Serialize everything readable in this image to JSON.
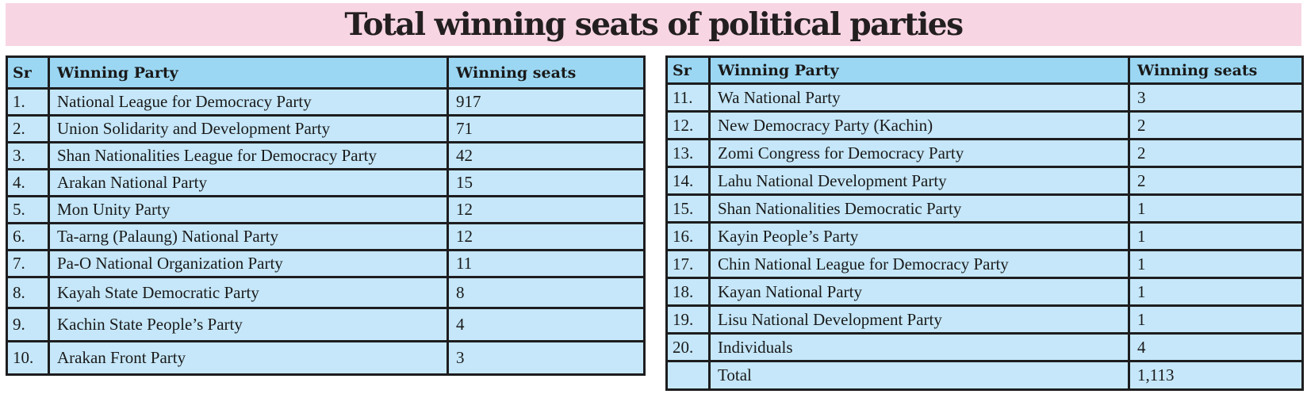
{
  "title": "Total winning seats of political parties",
  "tables": [
    {
      "headers": [
        "Sr",
        "Winning Party",
        "Winning seats"
      ],
      "rows": [
        {
          "sr": "1.",
          "party": "National League for Democracy Party",
          "seats": "917"
        },
        {
          "sr": "2.",
          "party": "Union Solidarity and Development Party",
          "seats": "71"
        },
        {
          "sr": "3.",
          "party": "Shan Nationalities League for Democracy Party",
          "seats": "42"
        },
        {
          "sr": "4.",
          "party": "Arakan National Party",
          "seats": "15"
        },
        {
          "sr": "5.",
          "party": "Mon Unity Party",
          "seats": "12"
        },
        {
          "sr": "6.",
          "party": "Ta-arng (Palaung) National Party",
          "seats": "12"
        },
        {
          "sr": "7.",
          "party": "Pa-O National Organization Party",
          "seats": "11"
        },
        {
          "sr": "8.",
          "party": "Kayah State Democratic Party",
          "seats": "8"
        },
        {
          "sr": "9.",
          "party": "Kachin State People’s Party",
          "seats": "4"
        },
        {
          "sr": "10.",
          "party": "Arakan Front Party",
          "seats": "3"
        }
      ]
    },
    {
      "headers": [
        "Sr",
        "Winning Party",
        "Winning seats"
      ],
      "rows": [
        {
          "sr": "11.",
          "party": "Wa National Party",
          "seats": "3"
        },
        {
          "sr": "12.",
          "party": "New Democracy Party (Kachin)",
          "seats": "2"
        },
        {
          "sr": "13.",
          "party": "Zomi Congress for Democracy Party",
          "seats": "2"
        },
        {
          "sr": "14.",
          "party": "Lahu National Development Party",
          "seats": "2"
        },
        {
          "sr": "15.",
          "party": "Shan Nationalities Democratic Party",
          "seats": "1"
        },
        {
          "sr": "16.",
          "party": "Kayin People’s Party",
          "seats": "1"
        },
        {
          "sr": "17.",
          "party": "Chin National League for Democracy Party",
          "seats": "1"
        },
        {
          "sr": "18.",
          "party": "Kayan National Party",
          "seats": "1"
        },
        {
          "sr": "19.",
          "party": "Lisu National Development Party",
          "seats": "1"
        },
        {
          "sr": "20.",
          "party": "Individuals",
          "seats": "4"
        },
        {
          "sr": "",
          "party": "Total",
          "seats": "1,113"
        }
      ]
    }
  ],
  "colors": {
    "title_background": "#f8d5e3",
    "header_background": "#9bd7f3",
    "row_background": "#c5e7f9",
    "border": "#1d1d1f",
    "text": "#1a1a1a"
  }
}
